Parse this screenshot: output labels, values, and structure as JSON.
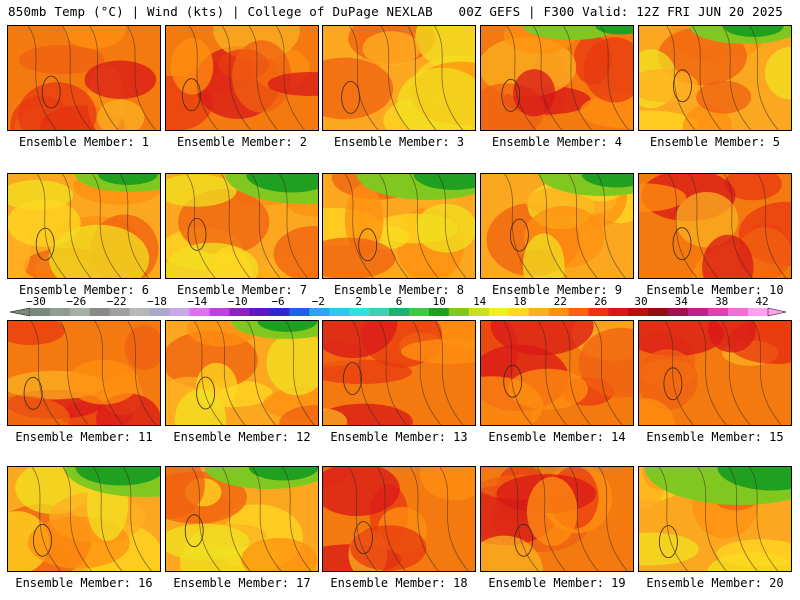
{
  "header": {
    "left": "850mb Temp (°C) | Wind (kts) | College of DuPage NEXLAB",
    "right": "00Z GEFS | F300 Valid: 12Z FRI JUN 20 2025"
  },
  "colorbar": {
    "tick_labels": [
      "−30",
      "−26",
      "−22",
      "−18",
      "−14",
      "−10",
      "−6",
      "−2",
      "2",
      "6",
      "10",
      "14",
      "18",
      "22",
      "26",
      "30",
      "34",
      "38",
      "42"
    ],
    "colors": [
      "#7a8a7a",
      "#8f9d8f",
      "#a4b0a4",
      "#8a8a8a",
      "#a0a0a0",
      "#b8b8b8",
      "#a8a8c8",
      "#c8a8e8",
      "#e070f0",
      "#c040e0",
      "#9020c0",
      "#6018c0",
      "#3028d0",
      "#2060e8",
      "#30a0f0",
      "#30c8f0",
      "#30e0e0",
      "#40d0b0",
      "#20b070",
      "#40c840",
      "#20a020",
      "#80c820",
      "#c8e020",
      "#f0f020",
      "#ffd820",
      "#ffb020",
      "#ff9010",
      "#ff6010",
      "#f03010",
      "#d81818",
      "#b81010",
      "#901010",
      "#a01050",
      "#c0208a",
      "#e040b0",
      "#f070d8",
      "#ffa0f0"
    ]
  },
  "members": [
    {
      "label": "Ensemble Member: 1",
      "scheme": "hot",
      "green": 0
    },
    {
      "label": "Ensemble Member: 2",
      "scheme": "hot",
      "green": 0
    },
    {
      "label": "Ensemble Member: 3",
      "scheme": "warm",
      "green": 0
    },
    {
      "label": "Ensemble Member: 4",
      "scheme": "hot",
      "green": 0.1
    },
    {
      "label": "Ensemble Member: 5",
      "scheme": "warm",
      "green": 0.2
    },
    {
      "label": "Ensemble Member: 6",
      "scheme": "warm",
      "green": 0.2
    },
    {
      "label": "Ensemble Member: 7",
      "scheme": "warm",
      "green": 0.5
    },
    {
      "label": "Ensemble Member: 8",
      "scheme": "warm",
      "green": 0.4
    },
    {
      "label": "Ensemble Member: 9",
      "scheme": "warm",
      "green": 0.3
    },
    {
      "label": "Ensemble Member: 10",
      "scheme": "hot",
      "green": 0
    },
    {
      "label": "Ensemble Member: 11",
      "scheme": "hot",
      "green": 0
    },
    {
      "label": "Ensemble Member: 12",
      "scheme": "warm",
      "green": 0.2
    },
    {
      "label": "Ensemble Member: 13",
      "scheme": "hot",
      "green": 0
    },
    {
      "label": "Ensemble Member: 14",
      "scheme": "hot",
      "green": 0
    },
    {
      "label": "Ensemble Member: 15",
      "scheme": "hot",
      "green": 0
    },
    {
      "label": "Ensemble Member: 16",
      "scheme": "warm",
      "green": 0.5
    },
    {
      "label": "Ensemble Member: 17",
      "scheme": "warm",
      "green": 0.3
    },
    {
      "label": "Ensemble Member: 18",
      "scheme": "hot",
      "green": 0
    },
    {
      "label": "Ensemble Member: 19",
      "scheme": "hot",
      "green": 0
    },
    {
      "label": "Ensemble Member: 20",
      "scheme": "warm",
      "green": 0.7
    }
  ]
}
